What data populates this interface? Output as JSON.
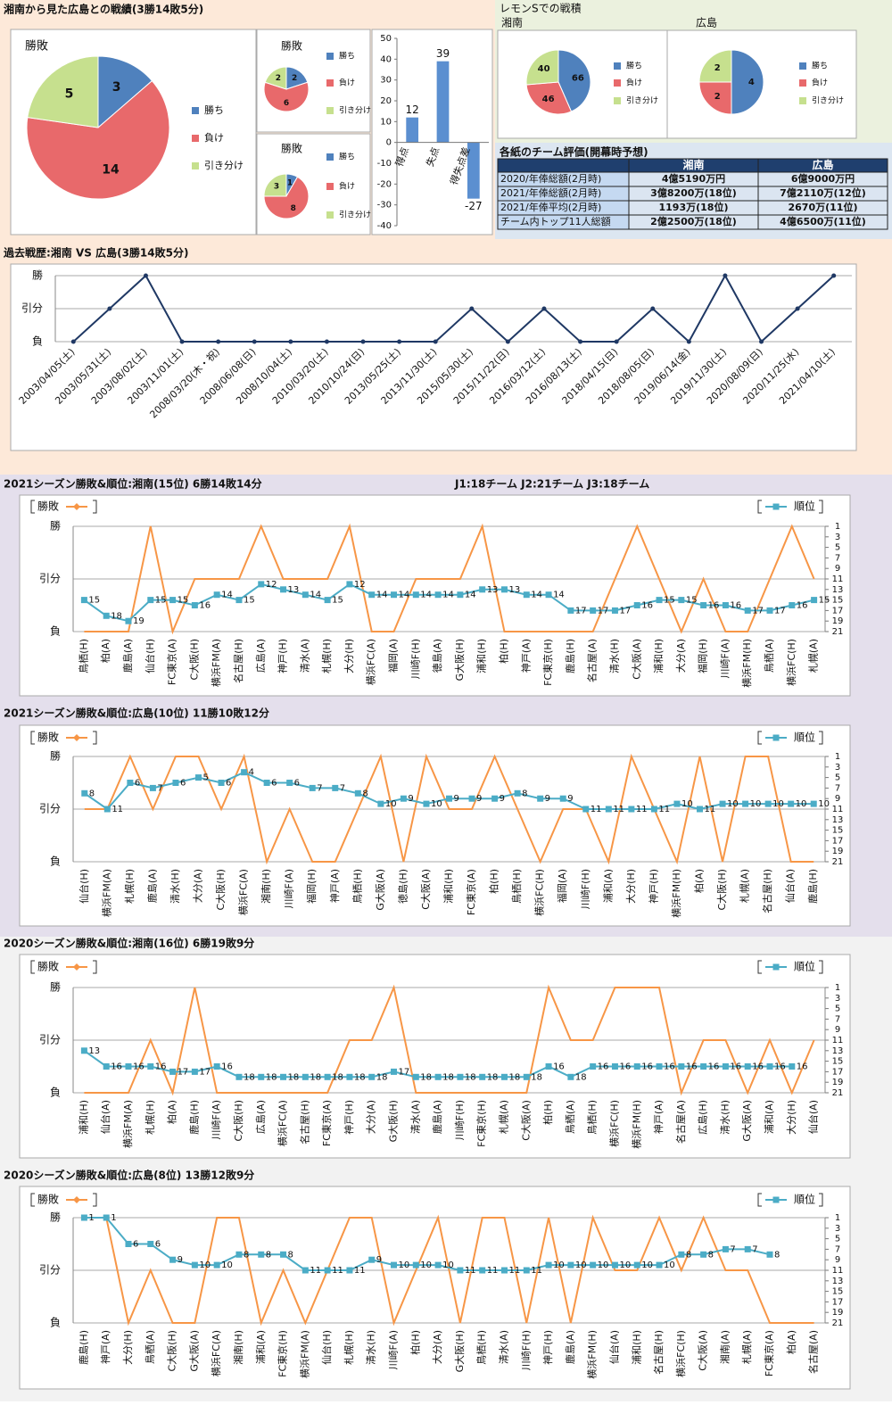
{
  "header": "湘南から見た広島との戦績(3勝14敗5分)",
  "lemon_title": "レモンSでの戦積",
  "table": {
    "title": "各紙のチーム評価(開幕時予想)",
    "header": [
      "湘南",
      "広島"
    ],
    "rows": [
      [
        "2020/年俸総額(2月時)",
        "4億5190万円",
        "6億9000万円"
      ],
      [
        "2021/年俸総額(2月時)",
        "3億8200万(18位)",
        "7億2110万(12位)"
      ],
      [
        "2021/年俸平均(2月時)",
        "1193万(18位)",
        "2670万(11位)"
      ],
      [
        "チーム内トップ11人総額",
        "2億2500万(18位)",
        "4億6500万(11位)"
      ]
    ]
  },
  "chart_data": [
    {
      "type": "pie",
      "title": "勝敗",
      "categories": [
        "勝ち",
        "負け",
        "引き分け"
      ],
      "values": [
        3,
        14,
        5
      ],
      "colors": [
        "#4f81bd",
        "#e8696b",
        "#c6e08e"
      ]
    },
    {
      "type": "pie",
      "title": "勝敗",
      "categories": [
        "勝ち",
        "負け",
        "引き分け"
      ],
      "values": [
        2,
        6,
        2
      ],
      "colors": [
        "#4f81bd",
        "#e8696b",
        "#c6e08e"
      ]
    },
    {
      "type": "pie",
      "title": "勝敗",
      "categories": [
        "勝ち",
        "負け",
        "引き分け"
      ],
      "values": [
        1,
        8,
        3
      ],
      "colors": [
        "#4f81bd",
        "#e8696b",
        "#c6e08e"
      ]
    },
    {
      "type": "bar",
      "categories": [
        "得点",
        "失点",
        "得失点差"
      ],
      "values": [
        12,
        39,
        -27
      ],
      "color": "#5b8fd0",
      "ylim": [
        -40,
        50
      ],
      "yticks": [
        -40,
        -30,
        -20,
        -10,
        0,
        10,
        20,
        30,
        40,
        50
      ]
    },
    {
      "type": "pie",
      "title": "湘南",
      "categories": [
        "勝ち",
        "負け",
        "引き分け"
      ],
      "values": [
        66,
        46,
        40
      ],
      "colors": [
        "#4f81bd",
        "#e8696b",
        "#c6e08e"
      ]
    },
    {
      "type": "pie",
      "title": "広島",
      "categories": [
        "勝ち",
        "負け",
        "引き分け"
      ],
      "values": [
        4,
        2,
        2
      ],
      "colors": [
        "#4f81bd",
        "#e8696b",
        "#c6e08e"
      ]
    },
    {
      "type": "line",
      "title": "過去戦歴:湘南 VS 広島(3勝14敗5分)",
      "categories": [
        "2003/04/05(土)",
        "2003/05/31(土)",
        "2003/08/02(土)",
        "2003/11/01(土)",
        "2008/03/20(木・祝)",
        "2008/06/08(日)",
        "2008/10/04(土)",
        "2010/03/20(土)",
        "2010/10/24(日)",
        "2013/05/25(土)",
        "2013/11/30(土)",
        "2015/05/30(土)",
        "2015/11/22(日)",
        "2016/03/12(土)",
        "2016/08/13(土)",
        "2018/04/15(日)",
        "2018/08/05(日)",
        "2019/06/14(金)",
        "2019/11/30(土)",
        "2020/08/09(日)",
        "2020/11/25(水)",
        "2021/04/10(土)"
      ],
      "values": [
        0,
        1,
        2,
        0,
        0,
        0,
        0,
        0,
        0,
        0,
        0,
        1,
        0,
        1,
        0,
        0,
        1,
        0,
        2,
        0,
        1,
        2
      ],
      "color": "#1f3864",
      "ylim": [
        0,
        2
      ],
      "yticks": [
        {
          "value": 0,
          "label": "負"
        },
        {
          "value": 1,
          "label": "引分"
        },
        {
          "value": 2,
          "label": "勝"
        }
      ],
      "grid": true
    },
    {
      "type": "line",
      "title": "2021シーズン勝敗&順位:湘南(15位) 6勝14敗14分",
      "note": "J1:18チーム J2:21チーム J3:18チーム",
      "categories": [
        "鳥栖(H)",
        "柏(A)",
        "鹿島(A)",
        "仙台(H)",
        "FC東京(A)",
        "C大阪(H)",
        "横浜FM(A)",
        "名古屋(H)",
        "広島(A)",
        "神戸(H)",
        "清水(A)",
        "札幌(H)",
        "大分(H)",
        "横浜FC(A)",
        "福岡(A)",
        "川崎F(H)",
        "徳島(A)",
        "G大阪(H)",
        "浦和(H)",
        "柏(H)",
        "神戸(A)",
        "FC東京(H)",
        "鹿島(H)",
        "名古屋(A)",
        "清水(H)",
        "C大阪(A)",
        "浦和(H)",
        "大分(A)",
        "福岡(H)",
        "川崎F(A)",
        "横浜FM(H)",
        "鳥栖(A)",
        "横浜FC(H)",
        "札幌(A)"
      ],
      "series": [
        {
          "name": "勝敗",
          "color": "#f79646",
          "values": [
            0,
            0,
            0,
            2,
            0,
            1,
            1,
            1,
            2,
            1,
            1,
            1,
            2,
            0,
            0,
            1,
            1,
            1,
            2,
            0,
            0,
            0,
            0,
            0,
            1,
            2,
            1,
            0,
            1,
            0,
            0,
            1,
            2,
            1
          ]
        },
        {
          "name": "順位",
          "color": "#4bacc6",
          "axis": "y2",
          "values": [
            15,
            18,
            19,
            15,
            15,
            16,
            14,
            15,
            12,
            13,
            14,
            15,
            12,
            14,
            14,
            14,
            14,
            14,
            13,
            13,
            14,
            14,
            17,
            17,
            17,
            16,
            15,
            15,
            16,
            16,
            17,
            17,
            16,
            15
          ]
        }
      ],
      "ylim": [
        0,
        2
      ],
      "yticks": [
        {
          "value": 0,
          "label": "負"
        },
        {
          "value": 1,
          "label": "引分"
        },
        {
          "value": 2,
          "label": "勝"
        }
      ],
      "y2lim": [
        21,
        1
      ],
      "y2ticks": [
        1,
        3,
        5,
        7,
        9,
        11,
        13,
        15,
        17,
        19,
        21
      ],
      "grid": true
    },
    {
      "type": "line",
      "title": "2021シーズン勝敗&順位:広島(10位) 11勝10敗12分",
      "categories": [
        "仙台(H)",
        "横浜FM(A)",
        "札幌(H)",
        "鹿島(A)",
        "清水(H)",
        "大分(A)",
        "C大阪(H)",
        "横浜FC(A)",
        "湘南(H)",
        "川崎F(A)",
        "福岡(H)",
        "神戸(A)",
        "鳥栖(H)",
        "G大阪(A)",
        "徳島(H)",
        "C大阪(A)",
        "浦和(H)",
        "FC東京(A)",
        "柏(H)",
        "鳥栖(H)",
        "横浜FC(H)",
        "福岡(A)",
        "川崎F(H)",
        "浦和(A)",
        "大分(H)",
        "神戸(H)",
        "横浜FM(H)",
        "柏(A)",
        "C大阪(H)",
        "札幌(A)",
        "名古屋(H)",
        "仙台(A)",
        "鹿島(H)"
      ],
      "series": [
        {
          "name": "勝敗",
          "color": "#f79646",
          "values": [
            1,
            1,
            2,
            1,
            2,
            2,
            1,
            2,
            0,
            1,
            0,
            0,
            1,
            2,
            0,
            2,
            1,
            1,
            2,
            1,
            0,
            1,
            1,
            0,
            2,
            1,
            0,
            2,
            0,
            2,
            2,
            0,
            0
          ]
        },
        {
          "name": "順位",
          "color": "#4bacc6",
          "axis": "y2",
          "values": [
            8,
            11,
            6,
            7,
            6,
            5,
            6,
            4,
            6,
            6,
            7,
            7,
            8,
            10,
            9,
            10,
            9,
            9,
            9,
            8,
            9,
            9,
            11,
            11,
            11,
            11,
            10,
            11,
            10,
            10,
            10,
            10,
            10
          ]
        }
      ],
      "ylim": [
        0,
        2
      ],
      "yticks": [
        {
          "value": 0,
          "label": "負"
        },
        {
          "value": 1,
          "label": "引分"
        },
        {
          "value": 2,
          "label": "勝"
        }
      ],
      "y2lim": [
        21,
        1
      ],
      "y2ticks": [
        1,
        3,
        5,
        7,
        9,
        11,
        13,
        15,
        17,
        19,
        21
      ],
      "grid": true
    },
    {
      "type": "line",
      "title": "2020シーズン勝敗&順位:湘南(16位) 6勝19敗9分",
      "categories": [
        "浦和(H)",
        "仙台(A)",
        "横浜FM(A)",
        "札幌(H)",
        "柏(A)",
        "鹿島(H)",
        "川崎F(A)",
        "C大阪(H)",
        "広島(A)",
        "横浜FC(A)",
        "名古屋(H)",
        "FC東京(A)",
        "神戸(H)",
        "大分(A)",
        "G大阪(H)",
        "清水(A)",
        "鹿島(A)",
        "川崎F(H)",
        "FC東京(H)",
        "札幌(A)",
        "C大阪(A)",
        "柏(H)",
        "鳥栖(A)",
        "鳥栖(H)",
        "横浜FC(H)",
        "横浜FM(H)",
        "神戸(A)",
        "名古屋(A)",
        "広島(H)",
        "清水(H)",
        "G大阪(A)",
        "浦和(A)",
        "大分(H)",
        "仙台(A)"
      ],
      "series": [
        {
          "name": "勝敗",
          "color": "#f79646",
          "values": [
            0,
            0,
            0,
            1,
            0,
            2,
            0,
            0,
            0,
            0,
            0,
            0,
            1,
            1,
            2,
            0,
            0,
            0,
            0,
            0,
            0,
            2,
            1,
            1,
            2,
            2,
            2,
            0,
            1,
            1,
            0,
            1,
            0,
            1
          ]
        },
        {
          "name": "順位",
          "color": "#4bacc6",
          "axis": "y2",
          "values": [
            13,
            16,
            16,
            16,
            17,
            17,
            16,
            18,
            18,
            18,
            18,
            18,
            18,
            18,
            17,
            18,
            18,
            18,
            18,
            18,
            18,
            16,
            18,
            16,
            16,
            16,
            16,
            16,
            16,
            16,
            16,
            16,
            16,
            null
          ]
        }
      ],
      "ylim": [
        0,
        2
      ],
      "yticks": [
        {
          "value": 0,
          "label": "負"
        },
        {
          "value": 1,
          "label": "引分"
        },
        {
          "value": 2,
          "label": "勝"
        }
      ],
      "y2lim": [
        21,
        1
      ],
      "y2ticks": [
        1,
        3,
        5,
        7,
        9,
        11,
        13,
        15,
        17,
        19,
        21
      ],
      "grid": true
    },
    {
      "type": "line",
      "title": "2020シーズン勝敗&順位:広島(8位) 13勝12敗9分",
      "categories": [
        "鹿島(H)",
        "神戸(A)",
        "大分(H)",
        "鳥栖(A)",
        "C大阪(H)",
        "G大阪(A)",
        "横浜FC(A)",
        "湘南(H)",
        "浦和(A)",
        "FC東京(H)",
        "横浜FM(A)",
        "仙台(H)",
        "札幌(H)",
        "清水(H)",
        "川崎F(A)",
        "柏(H)",
        "大分(A)",
        "G大阪(H)",
        "鳥栖(H)",
        "清水(A)",
        "川崎F(H)",
        "神戸(H)",
        "鹿島(A)",
        "横浜FM(H)",
        "仙台(A)",
        "浦和(H)",
        "名古屋(H)",
        "横浜FC(H)",
        "C大阪(A)",
        "湘南(A)",
        "札幌(A)",
        "FC東京(A)",
        "柏(A)",
        "名古屋(A)"
      ],
      "series": [
        {
          "name": "勝敗",
          "color": "#f79646",
          "values": [
            2,
            2,
            0,
            1,
            0,
            0,
            2,
            2,
            0,
            1,
            0,
            1,
            2,
            2,
            0,
            1,
            2,
            0,
            2,
            2,
            0,
            2,
            0,
            2,
            1,
            1,
            2,
            1,
            2,
            1,
            1,
            0,
            0,
            0
          ]
        },
        {
          "name": "順位",
          "color": "#4bacc6",
          "axis": "y2",
          "values": [
            1,
            1,
            6,
            6,
            9,
            10,
            10,
            8,
            8,
            8,
            11,
            11,
            11,
            9,
            10,
            10,
            10,
            11,
            11,
            11,
            11,
            10,
            10,
            10,
            10,
            10,
            10,
            8,
            8,
            7,
            7,
            8,
            null,
            null
          ]
        }
      ],
      "ylim": [
        0,
        2
      ],
      "yticks": [
        {
          "value": 0,
          "label": "負"
        },
        {
          "value": 1,
          "label": "引分"
        },
        {
          "value": 2,
          "label": "勝"
        }
      ],
      "y2lim": [
        21,
        1
      ],
      "y2ticks": [
        1,
        3,
        5,
        7,
        9,
        11,
        13,
        15,
        17,
        19,
        21
      ],
      "grid": true
    }
  ]
}
